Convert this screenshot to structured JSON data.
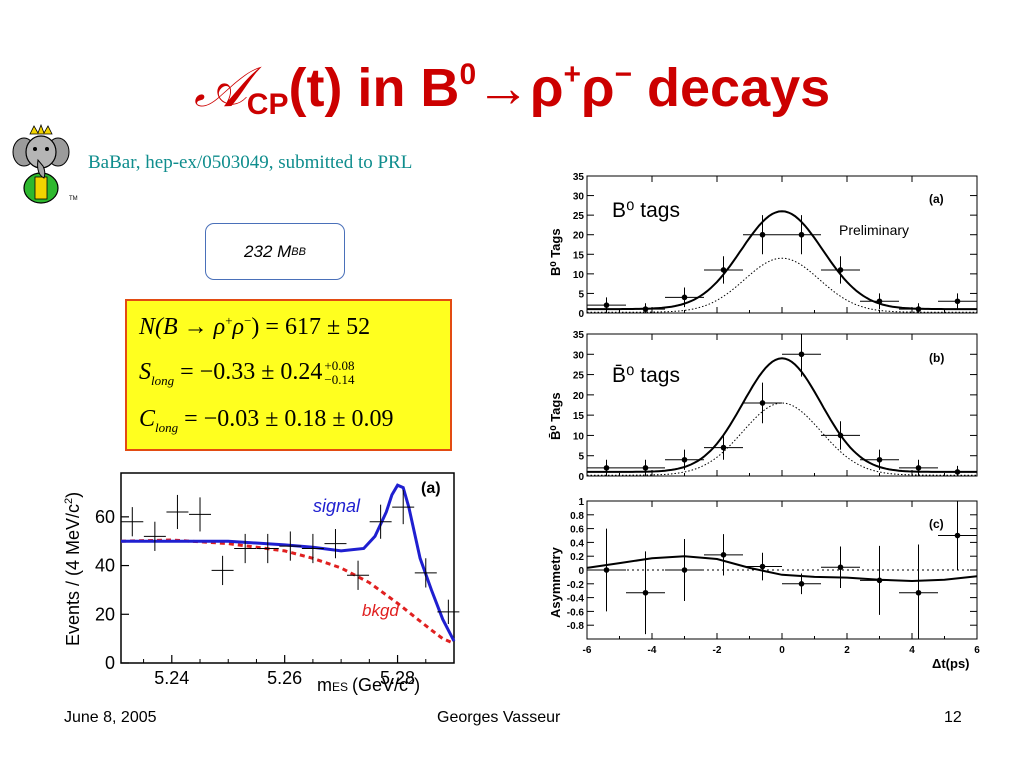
{
  "slide": {
    "title_symbol": "𝒜",
    "title_sub": "CP",
    "title_rest": "(t) in B",
    "title_sup": "0",
    "title_arrow": "→",
    "title_rho1": "ρ",
    "title_rho1_sup": "+",
    "title_rho2": "ρ",
    "title_rho2_sup": "−",
    "title_end": " decays",
    "reference": "BaBar, hep-ex/0503049, submitted to PRL",
    "logo_tm": "TM",
    "mbb_text": "232 M",
    "mbb_sub": "BB",
    "results": [
      {
        "lhs": "N(B → ρ",
        "lhs_sup1": "+",
        "lhs_mid": "ρ",
        "lhs_sup2": "−",
        "lhs_end": ")",
        "rhs": "= 617 ± 52"
      },
      {
        "lhs": "S",
        "lhs_sub": "long",
        "rhs": "= −0.33 ± 0.24",
        "err_up": "+0.08",
        "err_down": "−0.14"
      },
      {
        "lhs": "C",
        "lhs_sub": "long",
        "rhs": "= −0.03 ± 0.18 ± 0.09"
      }
    ],
    "footer": {
      "date": "June 8, 2005",
      "author": "Georges Vasseur",
      "page": "12"
    },
    "colors": {
      "title": "#cc0000",
      "reference": "#0f8d8d",
      "box_fill": "#ffff1f",
      "box_border": "#e34b12",
      "signal": "#1f1fd0",
      "bkgd": "#e02020",
      "mbb_border": "#4a70b9"
    }
  },
  "chart_data": [
    {
      "type": "scatter",
      "panel_label": "(a)",
      "xlabel": "m",
      "xlabel_sub": "ES",
      "xlabel_unit": "(GeV/c",
      "xlabel_unit_sup": "2",
      "xlabel_close": ")",
      "ylabel": "Events / (4 MeV/c",
      "ylabel_sup": "2",
      "ylabel_close": ")",
      "xlim": [
        5.231,
        5.29
      ],
      "ylim": [
        0,
        78
      ],
      "xticks": [
        "5.24",
        "5.26",
        "5.28"
      ],
      "yticks": [
        "0",
        "20",
        "40",
        "60"
      ],
      "annotations": [
        "signal",
        "bkgd"
      ],
      "points": [
        {
          "x": 5.233,
          "y": 58,
          "ey": 6
        },
        {
          "x": 5.237,
          "y": 52,
          "ey": 6
        },
        {
          "x": 5.241,
          "y": 62,
          "ey": 7
        },
        {
          "x": 5.245,
          "y": 61,
          "ey": 7
        },
        {
          "x": 5.249,
          "y": 38,
          "ey": 6
        },
        {
          "x": 5.253,
          "y": 47,
          "ey": 6
        },
        {
          "x": 5.257,
          "y": 47,
          "ey": 6
        },
        {
          "x": 5.261,
          "y": 48,
          "ey": 6
        },
        {
          "x": 5.265,
          "y": 47,
          "ey": 6
        },
        {
          "x": 5.269,
          "y": 49,
          "ey": 6
        },
        {
          "x": 5.273,
          "y": 36,
          "ey": 6
        },
        {
          "x": 5.277,
          "y": 58,
          "ey": 7
        },
        {
          "x": 5.281,
          "y": 64,
          "ey": 7
        },
        {
          "x": 5.285,
          "y": 37,
          "ey": 6
        },
        {
          "x": 5.289,
          "y": 21,
          "ey": 5
        }
      ],
      "series": [
        {
          "name": "signal",
          "style": "solid",
          "x": [
            5.231,
            5.24,
            5.25,
            5.26,
            5.265,
            5.27,
            5.274,
            5.276,
            5.278,
            5.279,
            5.28,
            5.281,
            5.282,
            5.284,
            5.286,
            5.288,
            5.29
          ],
          "y": [
            50,
            50,
            50,
            48.5,
            47.5,
            46,
            47,
            52,
            62,
            69,
            73,
            72,
            64,
            43,
            30,
            18,
            9
          ]
        },
        {
          "name": "bkgd",
          "style": "dashed",
          "x": [
            5.231,
            5.24,
            5.25,
            5.26,
            5.265,
            5.27,
            5.275,
            5.28,
            5.283,
            5.286,
            5.288,
            5.29
          ],
          "y": [
            50,
            50.5,
            49,
            46,
            43,
            39,
            33,
            24.5,
            19,
            13.5,
            10,
            8
          ]
        }
      ]
    },
    {
      "type": "scatter",
      "panel_label": "(a)",
      "annotation": "Preliminary",
      "legend": "B⁰ tags",
      "ylabel": "B⁰ Tags",
      "xlim": [
        -6,
        6
      ],
      "ylim": [
        0,
        35
      ],
      "yticks": [
        "0",
        "5",
        "10",
        "15",
        "20",
        "25",
        "30",
        "35"
      ],
      "points": [
        {
          "x": -5.4,
          "y": 2,
          "ey": 2,
          "ex": 0.6
        },
        {
          "x": -4.2,
          "y": 1,
          "ey": 1.5,
          "ex": 0.6
        },
        {
          "x": -3.0,
          "y": 4,
          "ey": 2.5,
          "ex": 0.6
        },
        {
          "x": -1.8,
          "y": 11,
          "ey": 3.5,
          "ex": 0.6
        },
        {
          "x": -0.6,
          "y": 20,
          "ey": 5,
          "ex": 0.6
        },
        {
          "x": 0.6,
          "y": 20,
          "ey": 5,
          "ex": 0.6
        },
        {
          "x": 1.8,
          "y": 11,
          "ey": 3.5,
          "ex": 0.6
        },
        {
          "x": 3.0,
          "y": 3,
          "ey": 2,
          "ex": 0.6
        },
        {
          "x": 4.2,
          "y": 1,
          "ey": 1.5,
          "ex": 0.6
        },
        {
          "x": 5.4,
          "y": 3,
          "ey": 2,
          "ex": 0.6
        }
      ],
      "series": [
        {
          "name": "total",
          "style": "solid",
          "peak": 26,
          "width": 1.25,
          "base": 1
        },
        {
          "name": "component",
          "style": "dotted",
          "peak": 14,
          "width": 1.15,
          "base": 0.2
        }
      ]
    },
    {
      "type": "scatter",
      "panel_label": "(b)",
      "legend": "B̄⁰ tags",
      "ylabel": "B̄⁰ Tags",
      "xlim": [
        -6,
        6
      ],
      "ylim": [
        0,
        35
      ],
      "yticks": [
        "0",
        "5",
        "10",
        "15",
        "20",
        "25",
        "30",
        "35"
      ],
      "points": [
        {
          "x": -5.4,
          "y": 2,
          "ey": 2,
          "ex": 0.6
        },
        {
          "x": -4.2,
          "y": 2,
          "ey": 2,
          "ex": 0.6
        },
        {
          "x": -3.0,
          "y": 4,
          "ey": 2.5,
          "ex": 0.6
        },
        {
          "x": -1.8,
          "y": 7,
          "ey": 3,
          "ex": 0.6
        },
        {
          "x": -0.6,
          "y": 18,
          "ey": 5,
          "ex": 0.6
        },
        {
          "x": 0.6,
          "y": 30,
          "ey": 5.5,
          "ex": 0.6
        },
        {
          "x": 1.8,
          "y": 10,
          "ey": 3.5,
          "ex": 0.6
        },
        {
          "x": 3.0,
          "y": 4,
          "ey": 2.5,
          "ex": 0.6
        },
        {
          "x": 4.2,
          "y": 2,
          "ey": 2,
          "ex": 0.6
        },
        {
          "x": 5.4,
          "y": 1,
          "ey": 1.5,
          "ex": 0.6
        }
      ],
      "series": [
        {
          "name": "total",
          "style": "solid",
          "peak": 29,
          "width": 1.2,
          "base": 1
        },
        {
          "name": "component",
          "style": "dotted",
          "peak": 18,
          "width": 1.2,
          "base": 0.2
        }
      ]
    },
    {
      "type": "scatter",
      "panel_label": "(c)",
      "ylabel": "Asymmetry",
      "xlabel": "Δt(ps)",
      "xlim": [
        -6,
        6
      ],
      "ylim": [
        -1,
        1
      ],
      "xticks": [
        "-6",
        "-4",
        "-2",
        "0",
        "2",
        "4",
        "6"
      ],
      "yticks": [
        "-0.8",
        "-0.6",
        "-0.4",
        "-0.2",
        "0",
        "0.2",
        "0.4",
        "0.6",
        "0.8",
        "1"
      ],
      "points": [
        {
          "x": -5.4,
          "y": 0.0,
          "ey": 0.6,
          "ex": 0.6
        },
        {
          "x": -4.2,
          "y": -0.33,
          "ey": 0.6,
          "ex": 0.6
        },
        {
          "x": -3.0,
          "y": 0.0,
          "ey": 0.45,
          "ex": 0.6
        },
        {
          "x": -1.8,
          "y": 0.22,
          "ey": 0.3,
          "ex": 0.6
        },
        {
          "x": -0.6,
          "y": 0.05,
          "ey": 0.2,
          "ex": 0.6
        },
        {
          "x": 0.6,
          "y": -0.2,
          "ey": 0.15,
          "ex": 0.6
        },
        {
          "x": 1.8,
          "y": 0.04,
          "ey": 0.3,
          "ex": 0.6
        },
        {
          "x": 3.0,
          "y": -0.15,
          "ey": 0.5,
          "ex": 0.6
        },
        {
          "x": 4.2,
          "y": -0.33,
          "ey": 0.7,
          "ex": 0.6
        },
        {
          "x": 5.4,
          "y": 0.5,
          "ey": 0.5,
          "ex": 0.6
        }
      ],
      "series": [
        {
          "name": "fit",
          "style": "solid",
          "x": [
            -6,
            -5,
            -4,
            -3,
            -2,
            -1,
            0,
            1,
            2,
            3,
            4,
            5,
            6
          ],
          "y": [
            0.03,
            0.1,
            0.17,
            0.2,
            0.16,
            0.03,
            -0.07,
            -0.1,
            -0.11,
            -0.14,
            -0.16,
            -0.14,
            -0.09
          ]
        }
      ]
    }
  ]
}
